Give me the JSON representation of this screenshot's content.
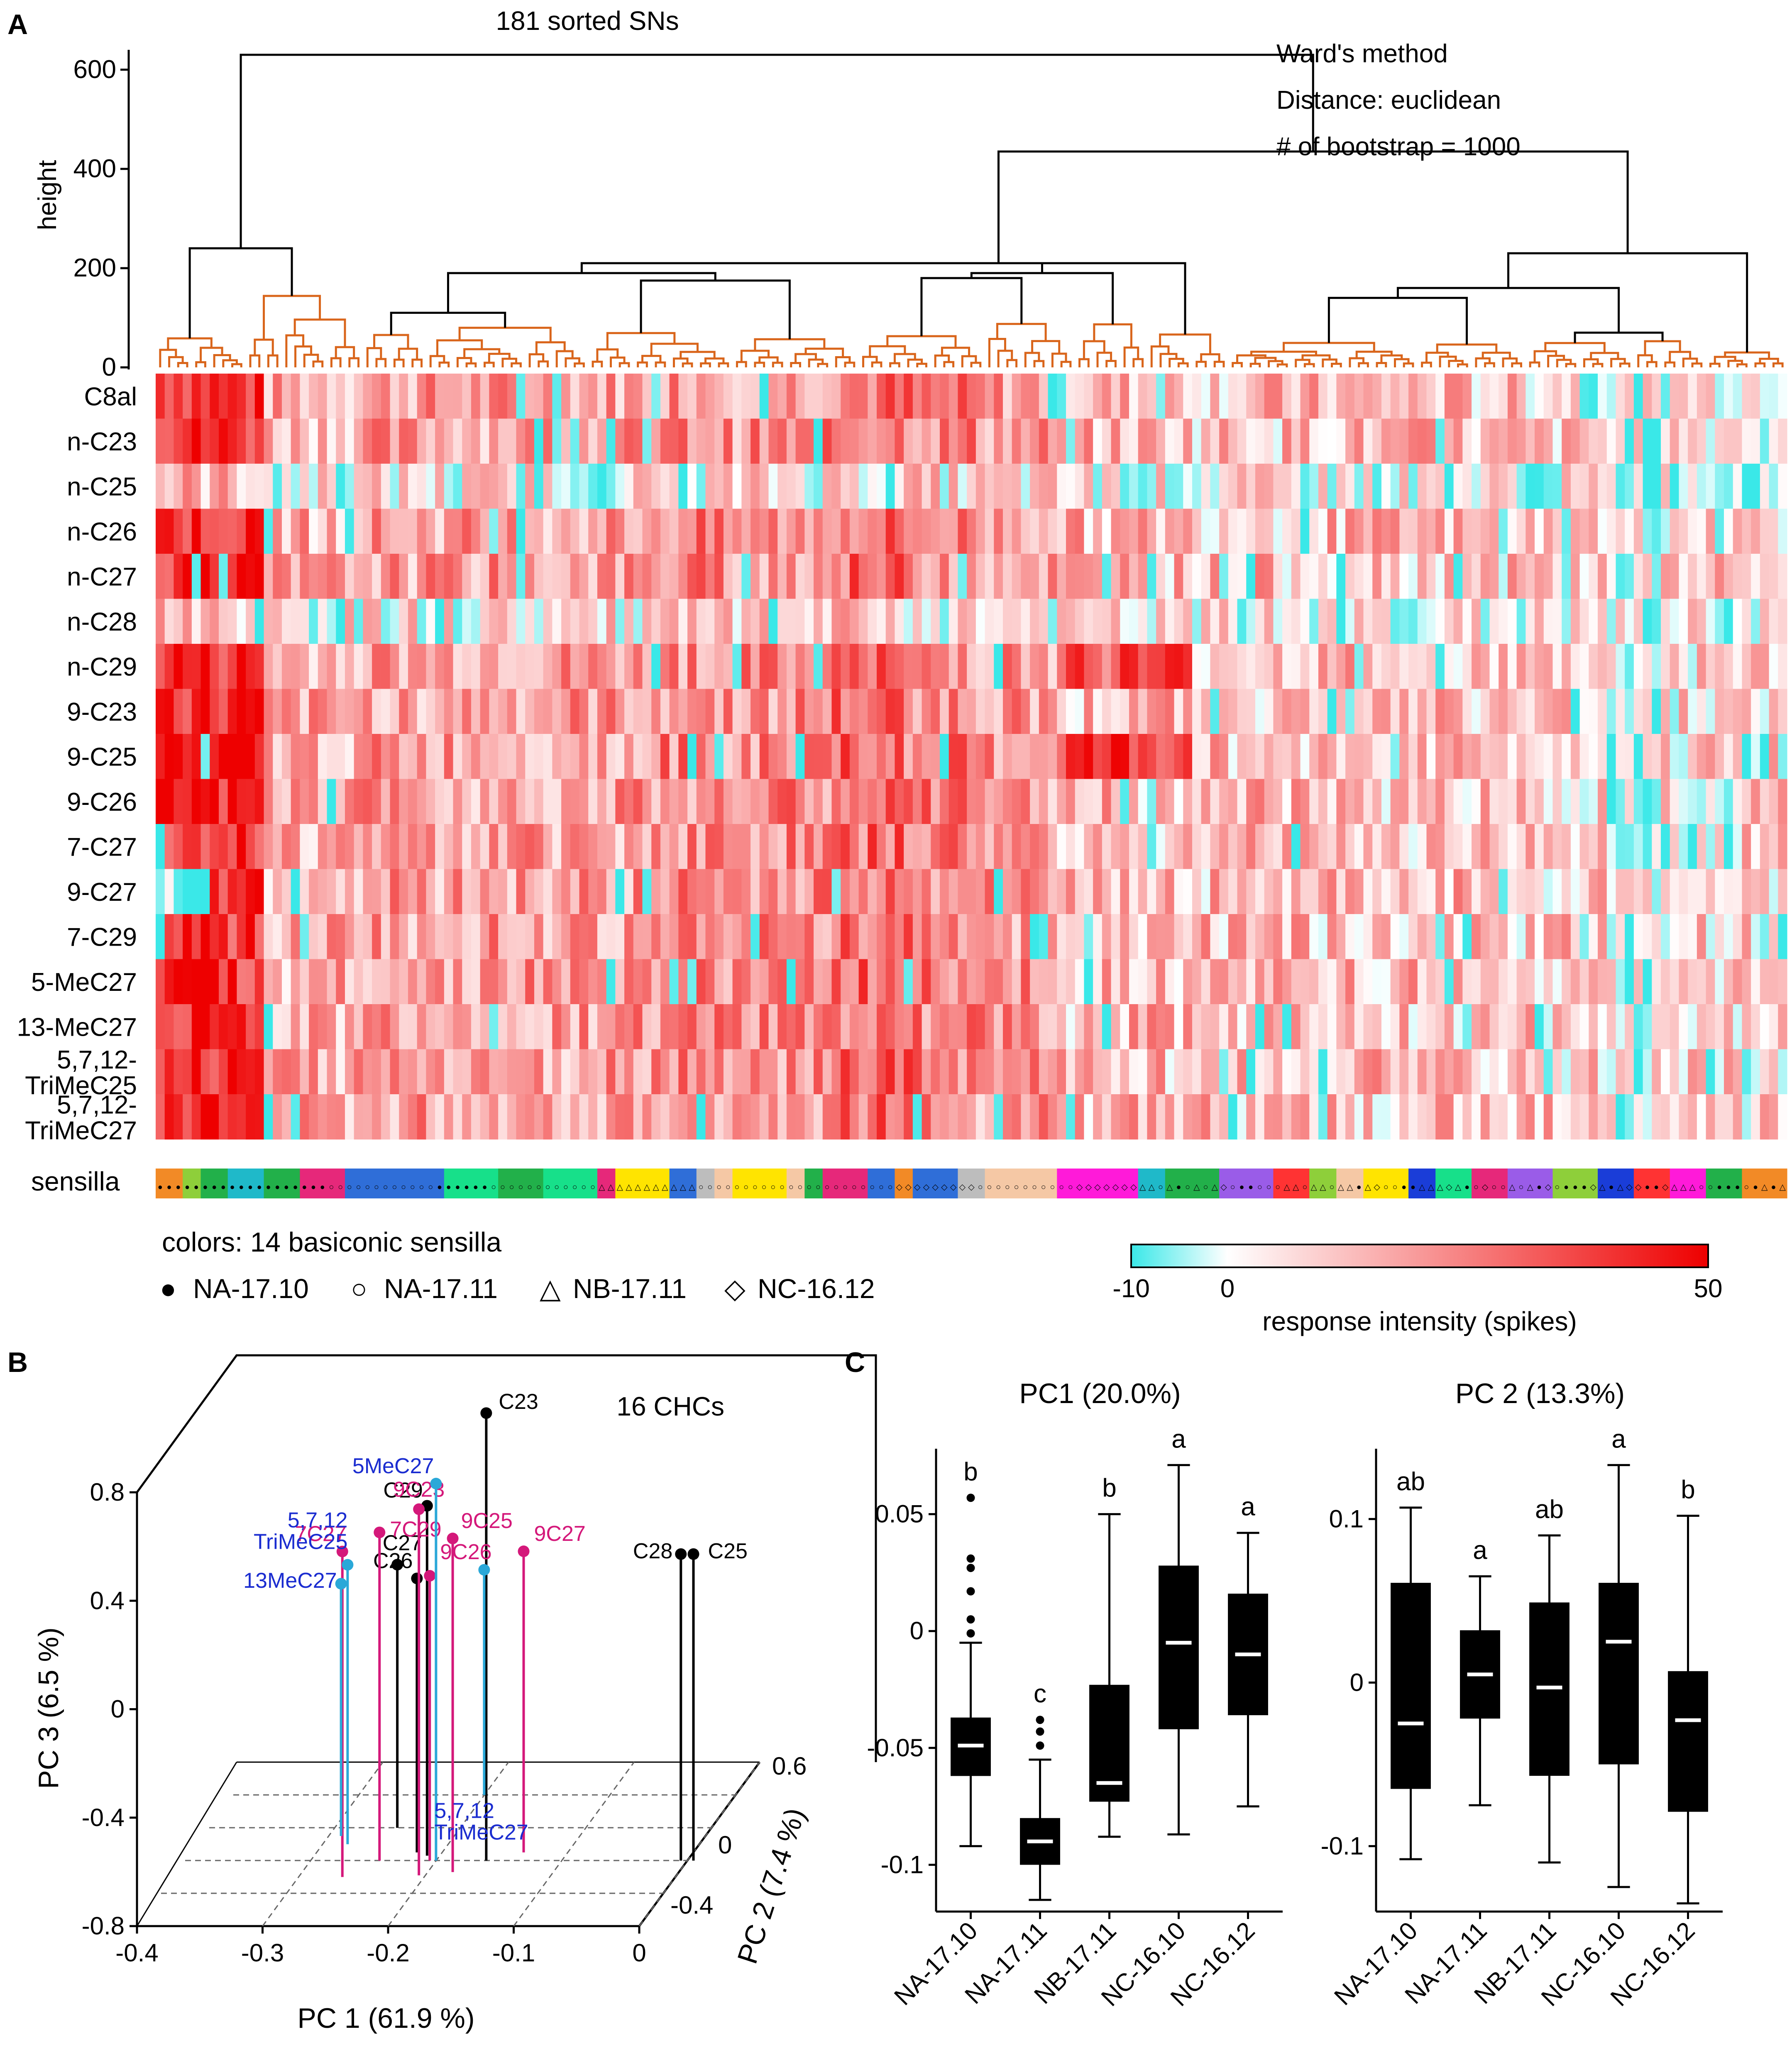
{
  "panel_labels": {
    "a": "A",
    "b": "B",
    "c": "C"
  },
  "chart_data": [
    {
      "type": "heatmap",
      "id": "A",
      "title": "181 sorted SNs",
      "method_notes": [
        "Ward's method",
        "Distance: euclidean",
        "# of bootstrap = 1000"
      ],
      "dendrogram": {
        "ylabel": "height",
        "yticks": [
          0,
          200,
          400,
          600
        ],
        "ylim": [
          0,
          640
        ],
        "leaves": 181,
        "cluster_colors": {
          "bootstrap_supported": "#d9651b",
          "other": "#000000"
        }
      },
      "rows": [
        "C8al",
        "n-C23",
        "n-C25",
        "n-C26",
        "n-C27",
        "n-C28",
        "n-C29",
        "9-C23",
        "9-C25",
        "9-C26",
        "7-C27",
        "9-C27",
        "7-C29",
        "5-MeC27",
        "13-MeC27",
        "5,7,12-TriMeC25",
        "5,7,12-TriMeC27"
      ],
      "sensilla_row_label": "sensilla",
      "colors_label": "colors: 14 basiconic sensilla",
      "legend_markers": [
        {
          "symbol": "●",
          "label": "NA-17.10"
        },
        {
          "symbol": "○",
          "label": "NA-17.11"
        },
        {
          "symbol": "△",
          "label": "NB-17.11"
        },
        {
          "symbol": "◇",
          "label": "NC-16.12"
        }
      ],
      "colorbar": {
        "label": "response intensity (spikes)",
        "min": -10,
        "zero": 0,
        "max": 50,
        "colors": {
          "low": "#3ae8e8",
          "zero": "#ffffff",
          "high": "#ee0000"
        }
      }
    },
    {
      "type": "scatter",
      "id": "B",
      "title": "16 CHCs",
      "xlabel": "PC 1 (61.9 %)",
      "ylabel": "PC 3 (6.5 %)",
      "zlabel": "PC 2 (7.4 %)",
      "xticks": [
        "-0.4",
        "-0.3",
        "-0.2",
        "-0.1",
        "0"
      ],
      "yticks": [
        "-0.8",
        "-0.4",
        "0",
        "0.4",
        "0.8"
      ],
      "zticks": [
        "-0.4",
        "0",
        "0.6"
      ],
      "xlim": [
        -0.4,
        0
      ],
      "ylim": [
        -0.8,
        0.8
      ],
      "zlim": [
        -0.4,
        0.6
      ],
      "groups": {
        "n-alkane": "#000000",
        "alkene": "#d4187a",
        "methyl-branched": "#2aa8d8"
      },
      "label_colors": {
        "n-alkane": "#000000",
        "alkene": "#d4187a",
        "methyl-branched": "#1a2cd0"
      },
      "points": [
        {
          "label": "C23",
          "group": "n-alkane",
          "pc1": -0.165,
          "pc2": 0.05,
          "pc3": 0.82
        },
        {
          "label": "C25",
          "group": "n-alkane",
          "pc1": 0.0,
          "pc2": 0.05,
          "pc3": 0.3
        },
        {
          "label": "C28",
          "group": "n-alkane",
          "pc1": -0.01,
          "pc2": 0.05,
          "pc3": 0.3
        },
        {
          "label": "C29",
          "group": "n-alkane",
          "pc1": -0.215,
          "pc2": 0.08,
          "pc3": 0.46
        },
        {
          "label": "C26",
          "group": "n-alkane",
          "pc1": -0.225,
          "pc2": 0.1,
          "pc3": 0.18
        },
        {
          "label": "C27",
          "group": "n-alkane",
          "pc1": -0.255,
          "pc2": 0.25,
          "pc3": 0.14
        },
        {
          "label": "9C23",
          "group": "alkene",
          "pc1": -0.21,
          "pc2": -0.04,
          "pc3": 0.52
        },
        {
          "label": "9C25",
          "group": "alkene",
          "pc1": -0.185,
          "pc2": -0.02,
          "pc3": 0.4
        },
        {
          "label": "9C26",
          "group": "alkene",
          "pc1": -0.21,
          "pc2": 0.05,
          "pc3": 0.22
        },
        {
          "label": "9C27",
          "group": "alkene",
          "pc1": -0.14,
          "pc2": 0.1,
          "pc3": 0.28
        },
        {
          "label": "7C27",
          "group": "alkene",
          "pc1": -0.27,
          "pc2": -0.05,
          "pc3": 0.37
        },
        {
          "label": "7C29",
          "group": "alkene",
          "pc1": -0.25,
          "pc2": 0.05,
          "pc3": 0.38
        },
        {
          "label": "5MeC27",
          "group": "methyl-branched",
          "pc1": -0.205,
          "pc2": 0.05,
          "pc3": 0.56
        },
        {
          "label": "5,7,12 TriMeC25",
          "group": "methyl-branched",
          "pc1": -0.285,
          "pc2": 0.15,
          "pc3": 0.2
        },
        {
          "label": "13MeC27",
          "group": "methyl-branched",
          "pc1": -0.295,
          "pc2": 0.2,
          "pc3": 0.1
        },
        {
          "label": "5,7,12 TriMeC27",
          "group": "methyl-branched",
          "pc1": -0.205,
          "pc2": 0.45,
          "pc3": 0.0
        }
      ]
    },
    {
      "type": "box",
      "id": "C-PC1",
      "title": "PC1 (20.0%)",
      "categories": [
        "NA-17.10",
        "NA-17.11",
        "NB-17.11",
        "NC-16.10",
        "NC-16.12"
      ],
      "ylim": [
        -0.12,
        0.078
      ],
      "yticks": [
        {
          "v": 0.05,
          "t": "0.05"
        },
        {
          "v": 0,
          "t": "0"
        },
        {
          "v": -0.05,
          "t": "-0.05"
        },
        {
          "v": -0.1,
          "t": "-0.1"
        }
      ],
      "boxes": [
        {
          "lower_whisker": -0.092,
          "q1": -0.062,
          "median": -0.049,
          "q3": -0.037,
          "upper_whisker": -0.005,
          "outliers": [
            -0.001,
            0.005,
            0.017,
            0.027,
            0.031,
            0.057
          ],
          "letter": "b"
        },
        {
          "lower_whisker": -0.115,
          "q1": -0.1,
          "median": -0.09,
          "q3": -0.08,
          "upper_whisker": -0.055,
          "outliers": [
            -0.049,
            -0.043,
            -0.038
          ],
          "letter": "c"
        },
        {
          "lower_whisker": -0.088,
          "q1": -0.073,
          "median": -0.065,
          "q3": -0.023,
          "upper_whisker": 0.05,
          "outliers": [],
          "letter": "b"
        },
        {
          "lower_whisker": -0.087,
          "q1": -0.042,
          "median": -0.005,
          "q3": 0.028,
          "upper_whisker": 0.071,
          "outliers": [],
          "letter": "a"
        },
        {
          "lower_whisker": -0.075,
          "q1": -0.036,
          "median": -0.01,
          "q3": 0.016,
          "upper_whisker": 0.042,
          "outliers": [],
          "letter": "a"
        }
      ]
    },
    {
      "type": "box",
      "id": "C-PC2",
      "title": "PC 2 (13.3%)",
      "categories": [
        "NA-17.10",
        "NA-17.11",
        "NB-17.11",
        "NC-16.10",
        "NC-16.12"
      ],
      "ylim": [
        -0.14,
        0.143
      ],
      "yticks": [
        {
          "v": 0.1,
          "t": "0.1"
        },
        {
          "v": 0,
          "t": "0"
        },
        {
          "v": -0.1,
          "t": "-0.1"
        }
      ],
      "boxes": [
        {
          "lower_whisker": -0.108,
          "q1": -0.065,
          "median": -0.025,
          "q3": 0.061,
          "upper_whisker": 0.107,
          "outliers": [],
          "letter": "ab"
        },
        {
          "lower_whisker": -0.075,
          "q1": -0.022,
          "median": 0.005,
          "q3": 0.032,
          "upper_whisker": 0.065,
          "outliers": [],
          "letter": "a"
        },
        {
          "lower_whisker": -0.11,
          "q1": -0.057,
          "median": -0.003,
          "q3": 0.049,
          "upper_whisker": 0.09,
          "outliers": [],
          "letter": "ab"
        },
        {
          "lower_whisker": -0.125,
          "q1": -0.05,
          "median": 0.025,
          "q3": 0.061,
          "upper_whisker": 0.133,
          "outliers": [],
          "letter": "a"
        },
        {
          "lower_whisker": -0.135,
          "q1": -0.079,
          "median": -0.023,
          "q3": 0.007,
          "upper_whisker": 0.102,
          "outliers": [],
          "letter": "b"
        }
      ]
    }
  ]
}
